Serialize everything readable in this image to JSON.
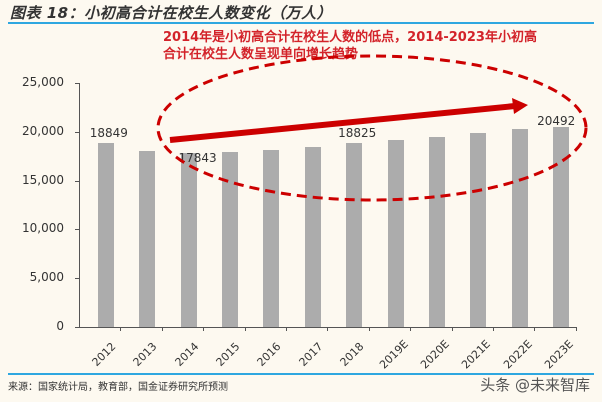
{
  "header": {
    "title": "图表 18：小初高合计在校生人数变化（万人）"
  },
  "annotation": {
    "line1": "2014年是小初高合计在校生人数的低点，2014-2023年小初高",
    "line2": "合计在校生人数呈现单向增长趋势",
    "color": "#d3232a"
  },
  "footer": {
    "source": "来源：国家统计局，教育部，国金证券研究所预测",
    "watermark": "头条 @未来智库"
  },
  "colors": {
    "bar": "#acacac",
    "accent_rule": "#2ea7e0",
    "highlight": "#cc0000",
    "background": "#fdf9f0"
  },
  "chart_data": {
    "type": "bar",
    "title": "小初高合计在校生人数变化（万人）",
    "xlabel": "",
    "ylabel": "",
    "ylim": [
      0,
      25000
    ],
    "yticks": [
      "0",
      "5,000",
      "10,000",
      "15,000",
      "20,000",
      "25,000"
    ],
    "grid": false,
    "legend": null,
    "categories": [
      "2012",
      "2013",
      "2014",
      "2015",
      "2016",
      "2017",
      "2018",
      "2019E",
      "2020E",
      "2021E",
      "2022E",
      "2023E"
    ],
    "values": [
      18849,
      18030,
      17843,
      17930,
      18100,
      18400,
      18825,
      19150,
      19500,
      19850,
      20250,
      20492
    ],
    "data_labels": {
      "2012": "18849",
      "2014": "17843",
      "2018": "18825",
      "2023E": "20492"
    },
    "annotations": [
      "Red dashed ellipse around 2014–2023E bars",
      "Red upward arrow from 2014 to 2023E",
      "2014年是小初高合计在校生人数的低点，2014-2023年小初高合计在校生人数呈现单向增长趋势"
    ]
  }
}
